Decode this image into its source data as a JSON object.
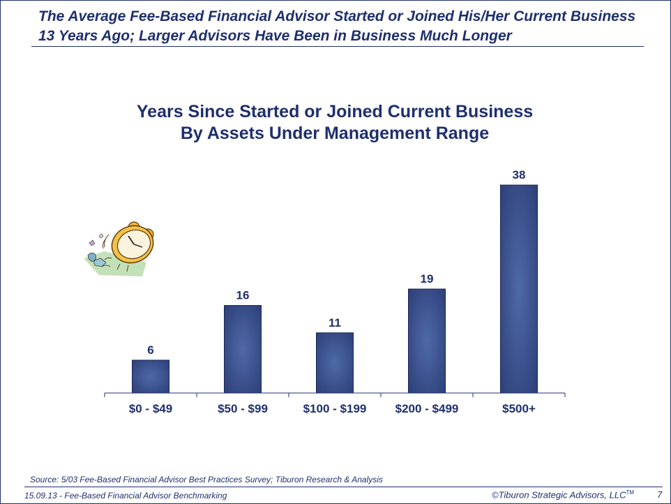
{
  "slide": {
    "heading": "The Average Fee-Based Financial Advisor Started or Joined His/Her Current Business 13 Years Ago; Larger Advisors Have Been in Business Much Longer",
    "source": "Source: 5/03 Fee-Based Financial Advisor Best Practices Survey; Tiburon Research & Analysis",
    "footer_left": "15.09.13 - Fee-Based Financial Advisor Benchmarking",
    "footer_right": "©Tiburon Strategic Advisors, LLC",
    "footer_tm": "TM",
    "page_number": "7"
  },
  "colors": {
    "primary": "#1f2f6e",
    "bar_center": "#4f6aa8",
    "bar_edge": "#2d3f78"
  },
  "chart_data": {
    "type": "bar",
    "title_line1": "Years Since Started or Joined Current Business",
    "title_line2": "By Assets Under Management Range",
    "categories": [
      "$0 - $49",
      "$50 - $99",
      "$100 - $199",
      "$200 - $499",
      "$500+"
    ],
    "values": [
      6,
      16,
      11,
      19,
      38
    ],
    "data_labels": [
      "6",
      "16",
      "11",
      "19",
      "38"
    ],
    "xlabel": "",
    "ylabel": "",
    "ylim": [
      0,
      40
    ],
    "grid": false,
    "legend": "none"
  }
}
